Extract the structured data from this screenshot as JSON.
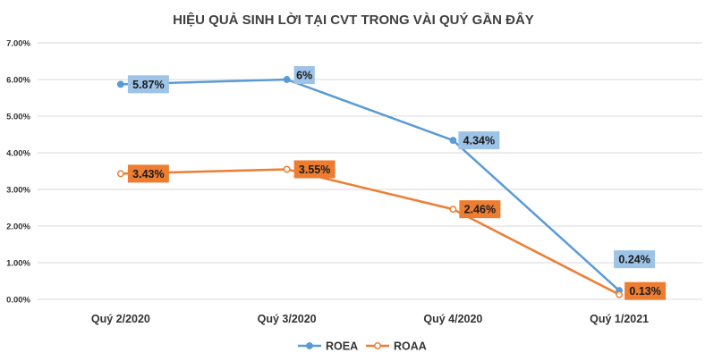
{
  "chart_data": {
    "type": "line",
    "title": "HIỆU QUẢ SINH LỜI TẠI CVT TRONG VÀI QUÝ GẦN ĐÂY",
    "categories": [
      "Quý 2/2020",
      "Quý 3/2020",
      "Quý 4/2020",
      "Quý 1/2021"
    ],
    "y_ticks": [
      "0.00%",
      "1.00%",
      "2.00%",
      "3.00%",
      "4.00%",
      "5.00%",
      "6.00%",
      "7.00%"
    ],
    "ylim": [
      0,
      7
    ],
    "grid": true,
    "legend_position": "bottom",
    "series": [
      {
        "name": "ROEA",
        "color": "#5b9bd5",
        "label_bg": "#9dc3e6",
        "marker": "filled-circle",
        "values": [
          5.87,
          6.0,
          4.34,
          0.24
        ],
        "labels": [
          "5.87%",
          "6%",
          "4.34%",
          "0.24%"
        ]
      },
      {
        "name": "ROAA",
        "color": "#ed7d31",
        "label_bg": "#ed7d31",
        "marker": "hollow-circle",
        "values": [
          3.43,
          3.55,
          2.46,
          0.13
        ],
        "labels": [
          "3.43%",
          "3.55%",
          "2.46%",
          "0.13%"
        ]
      }
    ]
  }
}
